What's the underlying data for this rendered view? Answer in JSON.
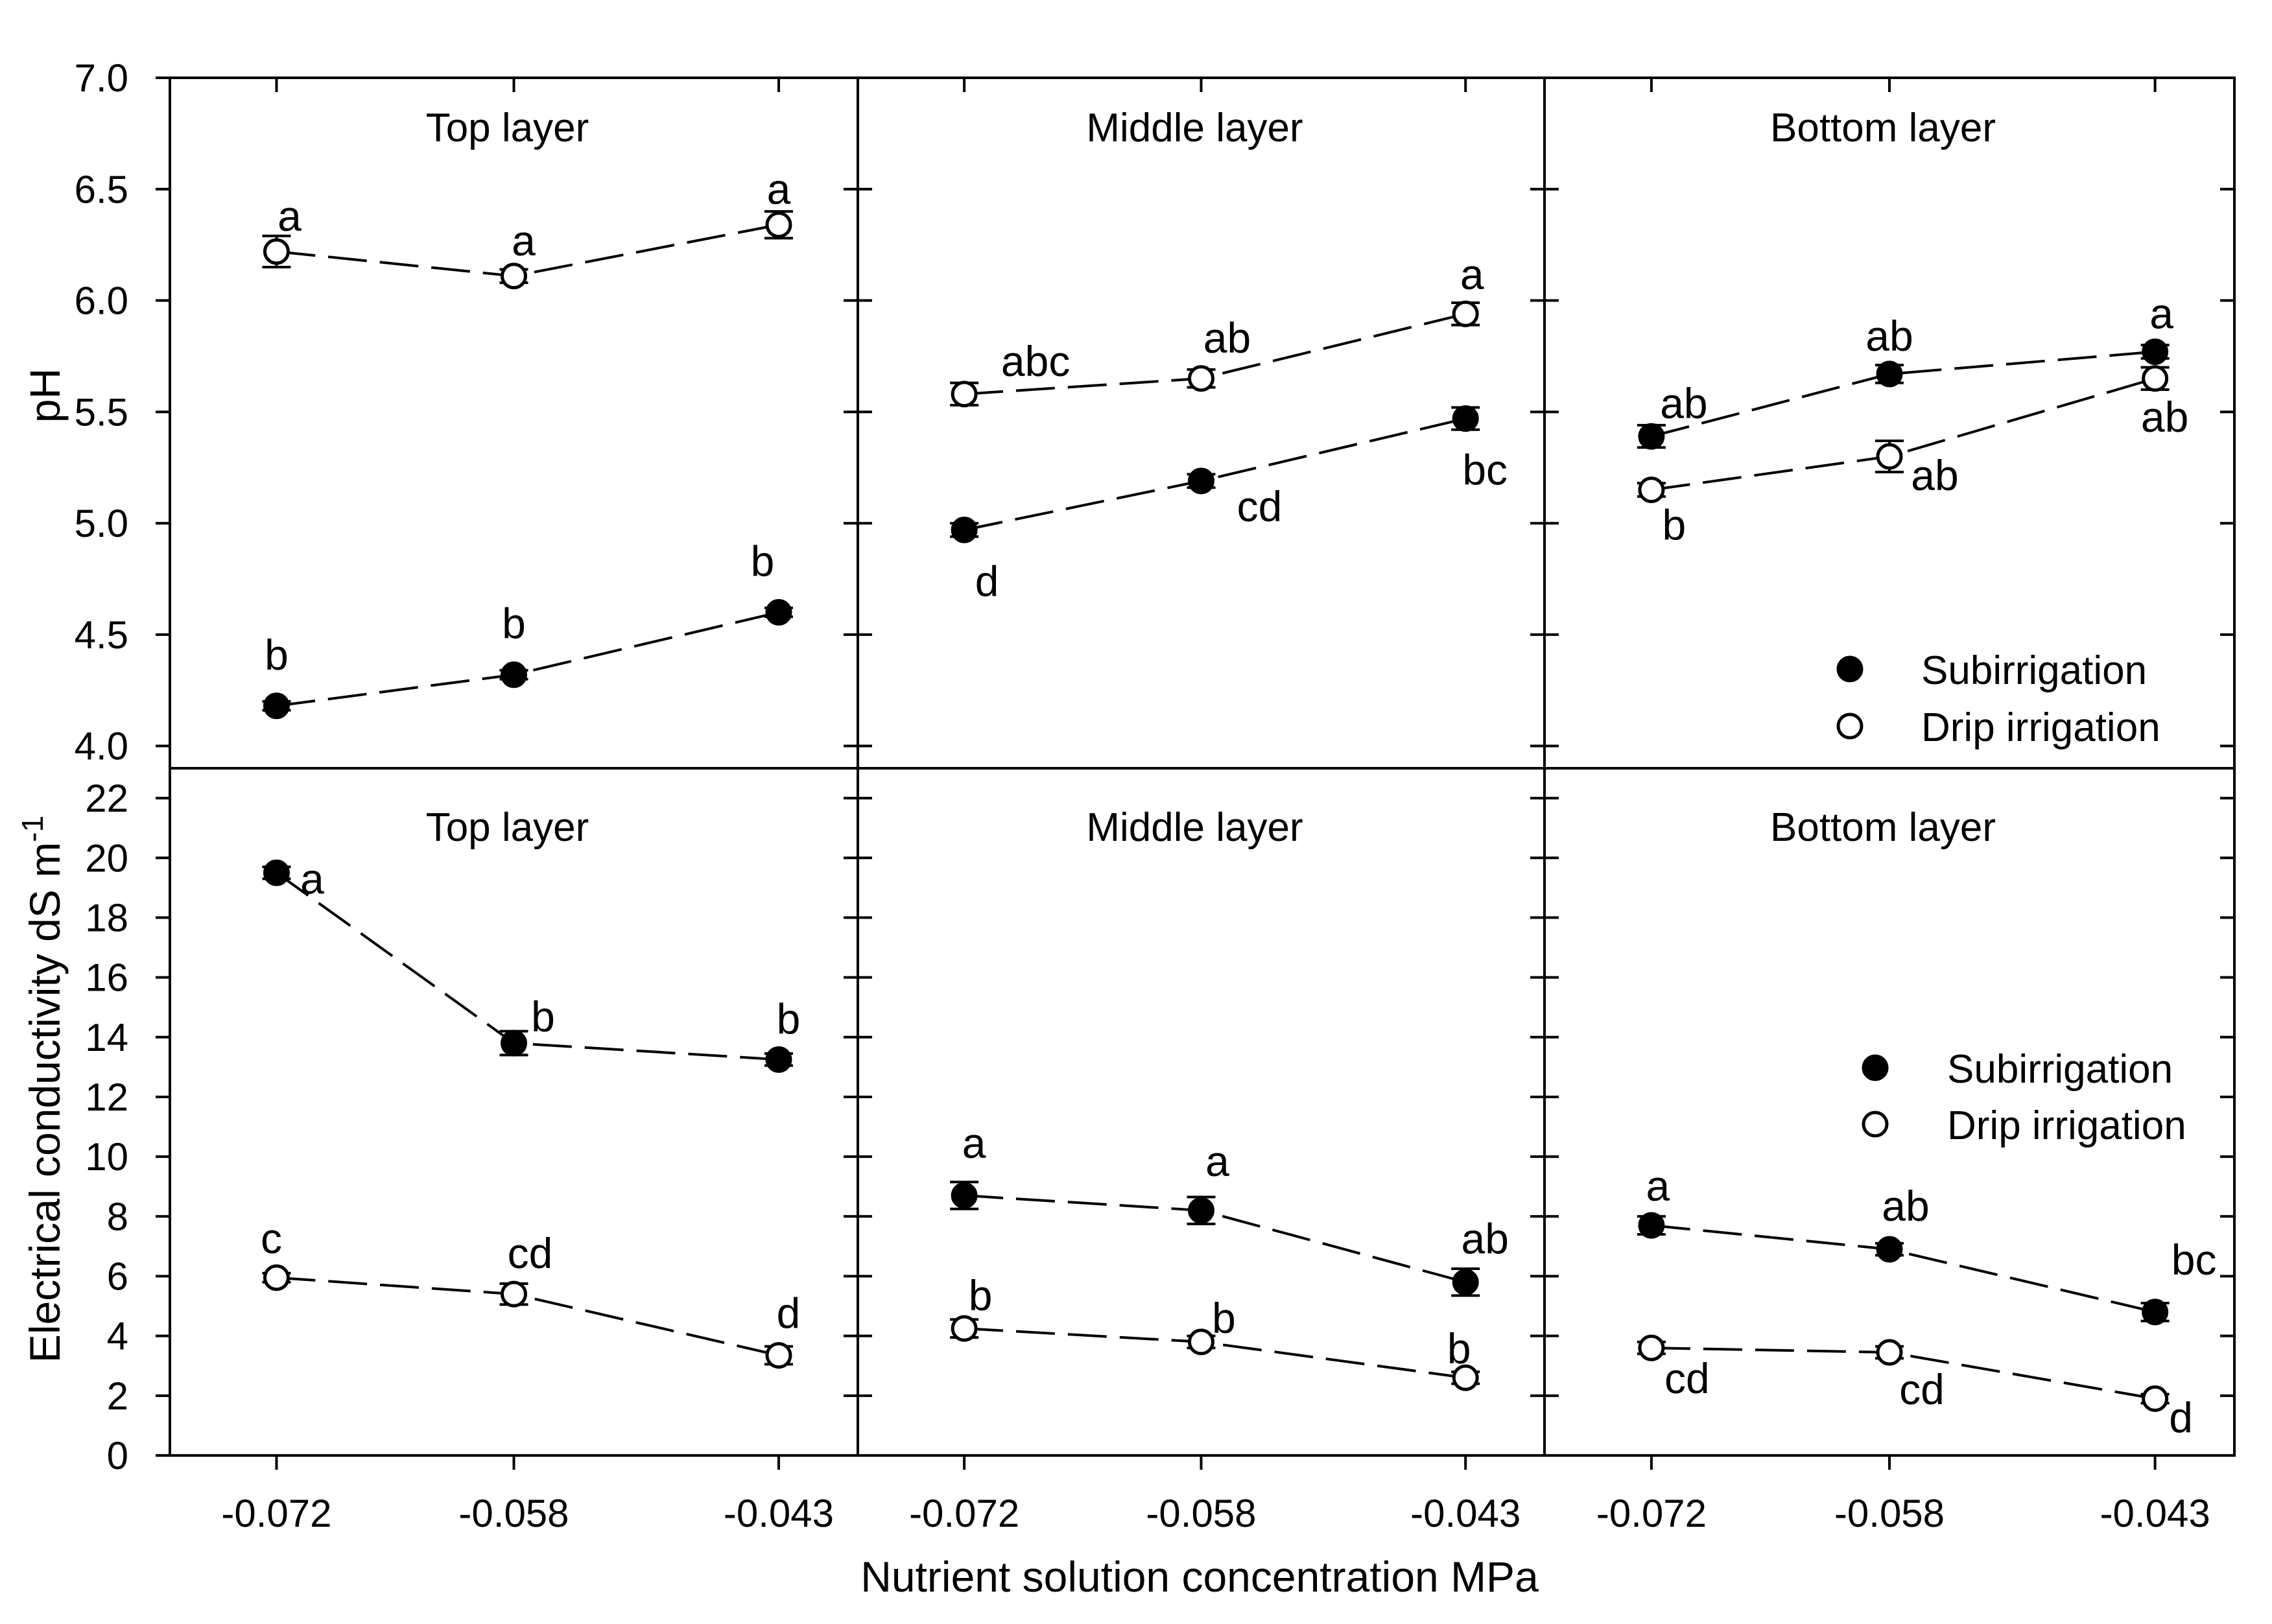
{
  "figure": {
    "xlabel": "Nutrient solution concentration MPa",
    "top_ylabel": "pH",
    "bottom_ylabel_main": "Electrical conductivity dS m",
    "bottom_ylabel_sup": "-1",
    "x_ticks": [
      "-0.072",
      "-0.058",
      "-0.043"
    ],
    "ph_ticks": [
      "4.0",
      "4.5",
      "5.0",
      "5.5",
      "6.0",
      "6.5",
      "7.0"
    ],
    "ec_ticks": [
      "0",
      "2",
      "4",
      "6",
      "8",
      "10",
      "12",
      "14",
      "16",
      "18",
      "20",
      "22"
    ],
    "legend": {
      "filled": "Subirrigation",
      "open": "Drip irrigation"
    }
  },
  "chart_data": [
    {
      "type": "line",
      "title": "Top layer",
      "ylabel": "pH",
      "xlabel": "Nutrient solution concentration MPa",
      "ylim": [
        3.9,
        7.0
      ],
      "categories": [
        "-0.072",
        "-0.058",
        "-0.043"
      ],
      "series": [
        {
          "name": "Subirrigation",
          "marker": "filled",
          "values": [
            4.18,
            4.32,
            4.6
          ],
          "errors": [
            0.02,
            0.02,
            0.02
          ],
          "letters": [
            "b",
            "b",
            "b"
          ]
        },
        {
          "name": "Drip irrigation",
          "marker": "open",
          "values": [
            6.22,
            6.11,
            6.34
          ],
          "errors": [
            0.07,
            0.03,
            0.06
          ],
          "letters": [
            "a",
            "a",
            "a"
          ]
        }
      ]
    },
    {
      "type": "line",
      "title": "Middle layer",
      "ylabel": "pH",
      "xlabel": "Nutrient solution concentration MPa",
      "ylim": [
        3.9,
        7.0
      ],
      "categories": [
        "-0.072",
        "-0.058",
        "-0.043"
      ],
      "series": [
        {
          "name": "Subirrigation",
          "marker": "filled",
          "values": [
            4.97,
            5.19,
            5.47
          ],
          "errors": [
            0.03,
            0.03,
            0.05
          ],
          "letters": [
            "d",
            "cd",
            "bc"
          ]
        },
        {
          "name": "Drip irrigation",
          "marker": "open",
          "values": [
            5.58,
            5.65,
            5.94
          ],
          "errors": [
            0.05,
            0.04,
            0.05
          ],
          "letters": [
            "abc",
            "ab",
            "a"
          ]
        }
      ]
    },
    {
      "type": "line",
      "title": "Bottom layer",
      "ylabel": "pH",
      "xlabel": "Nutrient solution concentration MPa",
      "ylim": [
        3.9,
        7.0
      ],
      "categories": [
        "-0.072",
        "-0.058",
        "-0.043"
      ],
      "series": [
        {
          "name": "Subirrigation",
          "marker": "filled",
          "values": [
            5.39,
            5.67,
            5.77
          ],
          "errors": [
            0.05,
            0.04,
            0.03
          ],
          "letters": [
            "ab",
            "ab",
            "a"
          ]
        },
        {
          "name": "Drip irrigation",
          "marker": "open",
          "values": [
            5.15,
            5.3,
            5.65
          ],
          "errors": [
            0.03,
            0.07,
            0.05
          ],
          "letters": [
            "b",
            "ab",
            "ab"
          ]
        }
      ]
    },
    {
      "type": "line",
      "title": "Top layer",
      "ylabel": "Electrical conductivity dS m-1",
      "xlabel": "Nutrient solution concentration MPa",
      "ylim": [
        0,
        23
      ],
      "categories": [
        "-0.072",
        "-0.058",
        "-0.043"
      ],
      "series": [
        {
          "name": "Subirrigation",
          "marker": "filled",
          "values": [
            19.5,
            13.8,
            13.25
          ],
          "errors": [
            0.2,
            0.4,
            0.2
          ],
          "letters": [
            "a",
            "b",
            "b"
          ]
        },
        {
          "name": "Drip irrigation",
          "marker": "open",
          "values": [
            5.95,
            5.4,
            3.35
          ],
          "errors": [
            0.15,
            0.35,
            0.3
          ],
          "letters": [
            "c",
            "cd",
            "d"
          ]
        }
      ]
    },
    {
      "type": "line",
      "title": "Middle layer",
      "ylabel": "Electrical conductivity dS m-1",
      "xlabel": "Nutrient solution concentration MPa",
      "ylim": [
        0,
        23
      ],
      "categories": [
        "-0.072",
        "-0.058",
        "-0.043"
      ],
      "series": [
        {
          "name": "Subirrigation",
          "marker": "filled",
          "values": [
            8.7,
            8.2,
            5.8
          ],
          "errors": [
            0.45,
            0.45,
            0.45
          ],
          "letters": [
            "a",
            "a",
            "ab"
          ]
        },
        {
          "name": "Drip irrigation",
          "marker": "open",
          "values": [
            4.25,
            3.8,
            2.6
          ],
          "errors": [
            0.3,
            0.2,
            0.2
          ],
          "letters": [
            "b",
            "b",
            "b"
          ]
        }
      ]
    },
    {
      "type": "line",
      "title": "Bottom layer",
      "ylabel": "Electrical conductivity dS m-1",
      "xlabel": "Nutrient solution concentration MPa",
      "ylim": [
        0,
        23
      ],
      "categories": [
        "-0.072",
        "-0.058",
        "-0.043"
      ],
      "series": [
        {
          "name": "Subirrigation",
          "marker": "filled",
          "values": [
            7.7,
            6.9,
            4.8
          ],
          "errors": [
            0.3,
            0.2,
            0.3
          ],
          "letters": [
            "a",
            "ab",
            "bc"
          ]
        },
        {
          "name": "Drip irrigation",
          "marker": "open",
          "values": [
            3.6,
            3.45,
            1.9
          ],
          "errors": [
            0.2,
            0.2,
            0.15
          ],
          "letters": [
            "cd",
            "cd",
            "d"
          ]
        }
      ]
    }
  ]
}
